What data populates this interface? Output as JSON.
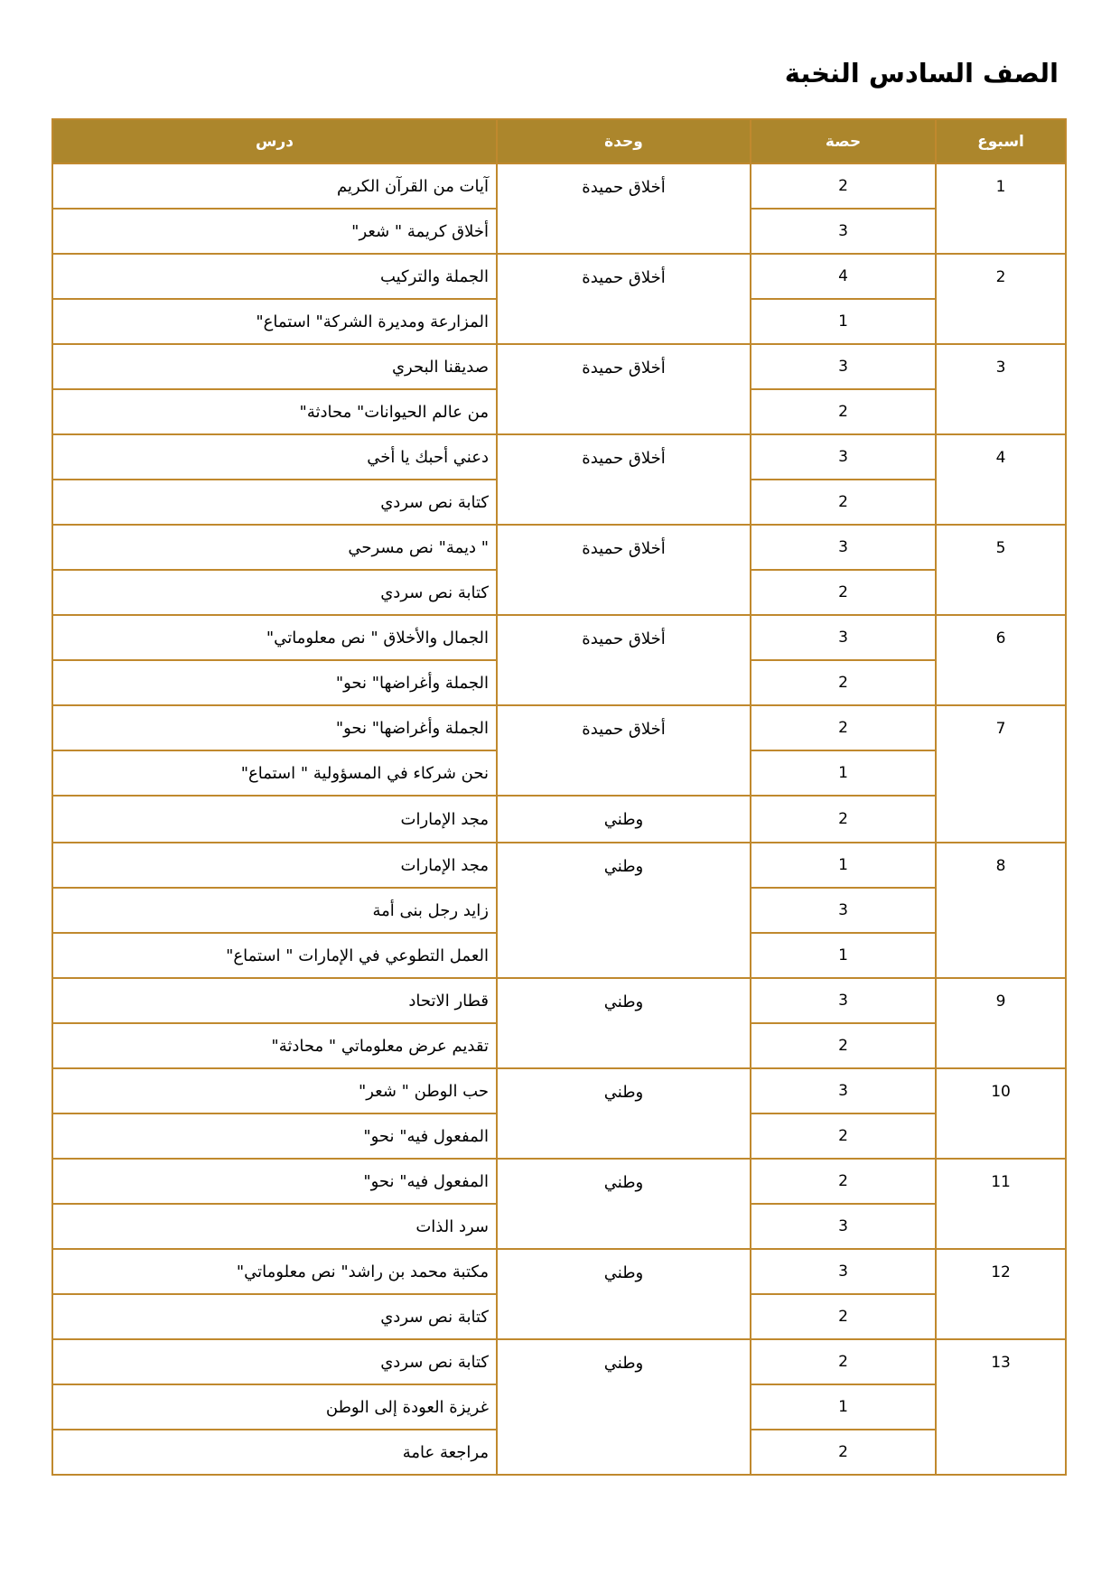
{
  "page": {
    "title": "الصف السادس النخبة"
  },
  "colors": {
    "header_bg": "#AC862C",
    "header_text": "#FFFFFF",
    "border": "#C0892E"
  },
  "table": {
    "headers": [
      {
        "key": "week",
        "label": "اسبوع"
      },
      {
        "key": "period",
        "label": "حصة"
      },
      {
        "key": "unit",
        "label": "وحدة"
      },
      {
        "key": "lesson",
        "label": "درس"
      }
    ],
    "weeks": [
      {
        "week": "1",
        "units": [
          {
            "name": "أخلاق حميدة",
            "span": 2
          }
        ],
        "rows": [
          {
            "lesson": "آيات من القرآن الكريم",
            "period": "2"
          },
          {
            "lesson": "أخلاق كريمة \" شعر\"",
            "period": "3"
          }
        ]
      },
      {
        "week": "2",
        "units": [
          {
            "name": "أخلاق حميدة",
            "span": 2
          }
        ],
        "rows": [
          {
            "lesson": "الجملة والتركيب",
            "period": "4"
          },
          {
            "lesson": "المزارعة ومديرة الشركة\" استماع\"",
            "period": "1"
          }
        ]
      },
      {
        "week": "3",
        "units": [
          {
            "name": "أخلاق حميدة",
            "span": 2
          }
        ],
        "rows": [
          {
            "lesson": "صديقنا البحري",
            "period": "3"
          },
          {
            "lesson": "من عالم الحيوانات\" محادثة\"",
            "period": "2"
          }
        ]
      },
      {
        "week": "4",
        "units": [
          {
            "name": "أخلاق حميدة",
            "span": 2
          }
        ],
        "rows": [
          {
            "lesson": "دعني أحبك يا أخي",
            "period": "3"
          },
          {
            "lesson": "كتابة نص سردي",
            "period": "2"
          }
        ]
      },
      {
        "week": "5",
        "units": [
          {
            "name": "أخلاق حميدة",
            "span": 2
          }
        ],
        "rows": [
          {
            "lesson": "\" ديمة\" نص مسرحي",
            "period": "3"
          },
          {
            "lesson": "كتابة نص سردي",
            "period": "2"
          }
        ]
      },
      {
        "week": "6",
        "units": [
          {
            "name": "أخلاق حميدة",
            "span": 2
          }
        ],
        "rows": [
          {
            "lesson": "الجمال والأخلاق \" نص معلوماتي\"",
            "period": "3"
          },
          {
            "lesson": "الجملة وأغراضها\" نحو\"",
            "period": "2"
          }
        ]
      },
      {
        "week": "7",
        "units": [
          {
            "name": "أخلاق حميدة",
            "span": 2
          },
          {
            "name": "وطني",
            "span": 1
          }
        ],
        "rows": [
          {
            "lesson": "الجملة وأغراضها\" نحو\"",
            "period": "2"
          },
          {
            "lesson": "نحن شركاء في المسؤولية \" استماع\"",
            "period": "1"
          },
          {
            "lesson": "مجد الإمارات",
            "period": "2"
          }
        ]
      },
      {
        "week": "8",
        "units": [
          {
            "name": "وطني",
            "span": 3
          }
        ],
        "rows": [
          {
            "lesson": "مجد الإمارات",
            "period": "1"
          },
          {
            "lesson": "زايد رجل بنى أمة",
            "period": "3"
          },
          {
            "lesson": "العمل التطوعي في الإمارات \" استماع\"",
            "period": "1"
          }
        ]
      },
      {
        "week": "9",
        "units": [
          {
            "name": "وطني",
            "span": 2
          }
        ],
        "rows": [
          {
            "lesson": "قطار الاتحاد",
            "period": "3"
          },
          {
            "lesson": "تقديم عرض معلوماتي \" محادثة\"",
            "period": "2"
          }
        ]
      },
      {
        "week": "10",
        "units": [
          {
            "name": "وطني",
            "span": 2
          }
        ],
        "rows": [
          {
            "lesson": "حب الوطن \" شعر\"",
            "period": "3"
          },
          {
            "lesson": "المفعول فيه\" نحو\"",
            "period": "2"
          }
        ]
      },
      {
        "week": "11",
        "units": [
          {
            "name": "وطني",
            "span": 2
          }
        ],
        "rows": [
          {
            "lesson": "المفعول فيه\" نحو\"",
            "period": "2"
          },
          {
            "lesson": "سرد الذات",
            "period": "3"
          }
        ]
      },
      {
        "week": "12",
        "units": [
          {
            "name": "وطني",
            "span": 2
          }
        ],
        "rows": [
          {
            "lesson": "مكتبة محمد بن راشد\" نص معلوماتي\"",
            "period": "3"
          },
          {
            "lesson": "كتابة نص سردي",
            "period": "2"
          }
        ]
      },
      {
        "week": "13",
        "units": [
          {
            "name": "وطني",
            "span": 3
          }
        ],
        "rows": [
          {
            "lesson": "كتابة نص سردي",
            "period": "2"
          },
          {
            "lesson": "غريزة العودة إلى الوطن",
            "period": "1"
          },
          {
            "lesson": "مراجعة عامة",
            "period": "2"
          }
        ]
      }
    ]
  }
}
